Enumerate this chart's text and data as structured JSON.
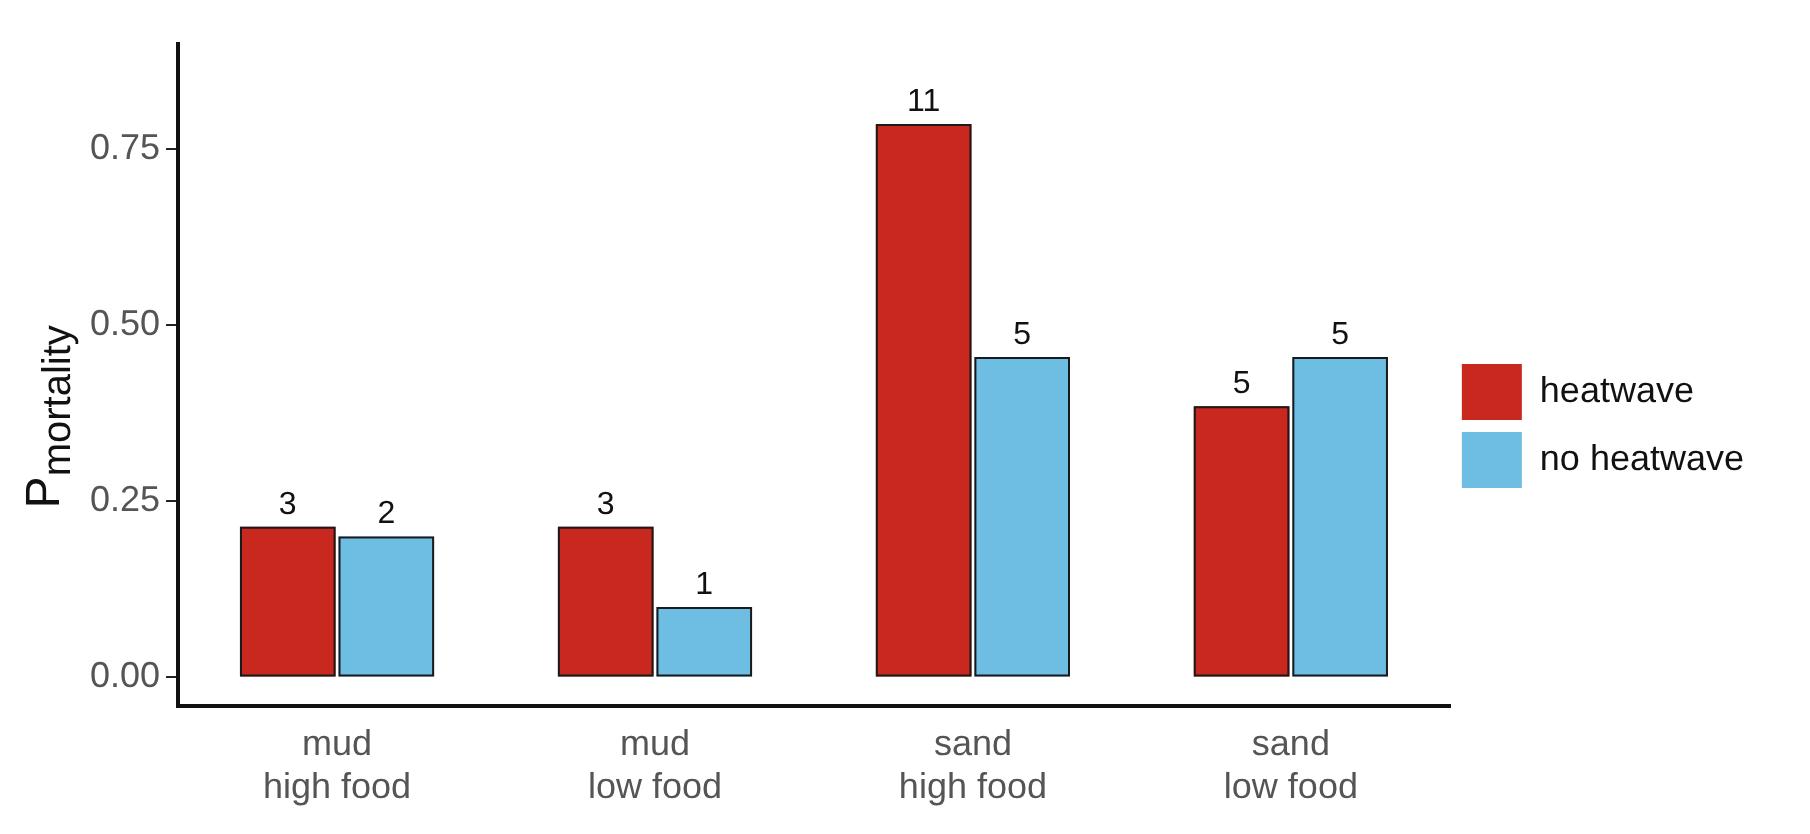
{
  "chart_data": {
    "type": "bar",
    "ylabel": "P$_{mortality}$",
    "categories": [
      "mud\nhigh food",
      "mud\nlow food",
      "sand\nhigh food",
      "sand\nlow food"
    ],
    "series": [
      {
        "name": "heatwave",
        "color": "#c8281e",
        "values": [
          0.214,
          0.214,
          0.786,
          0.385
        ]
      },
      {
        "name": "no heatwave",
        "color": "#6ebde3",
        "values": [
          0.2,
          0.1,
          0.455,
          0.455
        ]
      }
    ],
    "annotations": [
      {
        "text": "3",
        "x": "mud\nhigh food",
        "y": 0.214
      },
      {
        "text": "2",
        "x": "mud\nhigh food",
        "y": 0.2
      },
      {
        "text": "3",
        "x": "mud\nlow food",
        "y": 0.214
      },
      {
        "text": "1",
        "x": "mud\nlow food",
        "y": 0.1
      },
      {
        "text": "11",
        "x": "sand\nhigh food",
        "y": 0.786
      },
      {
        "text": "5",
        "x": "sand\nhigh food",
        "y": 0.455
      },
      {
        "text": "5",
        "x": "sand\nlow food",
        "y": 0.385
      },
      {
        "text": "5",
        "x": "sand\nlow food",
        "y": 0.455
      }
    ],
    "ylim": [
      -0.04,
      0.9
    ],
    "yticks": [
      {
        "value": 0,
        "label": "0.00"
      },
      {
        "value": 0.25,
        "label": "0.25"
      },
      {
        "value": 0.5,
        "label": "0.50"
      },
      {
        "value": 0.75,
        "label": "0.75"
      }
    ],
    "grid": false,
    "legend": "right"
  }
}
